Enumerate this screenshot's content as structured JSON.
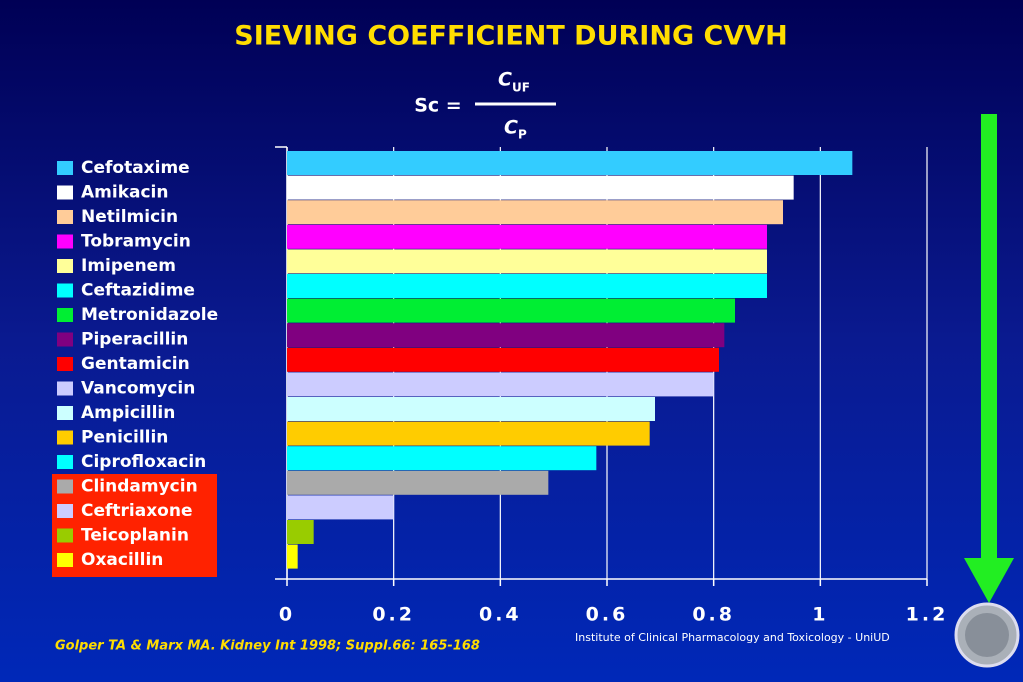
{
  "chart_data": {
    "type": "bar",
    "orientation": "horizontal",
    "title": "SIEVING COEFFICIENT DURING CVVH",
    "formula": {
      "left": "Sc =",
      "numerator": "C",
      "numerator_sub": "UF",
      "denominator": "C",
      "denominator_sub": "P"
    },
    "categories": [
      "Cefotaxime",
      "Amikacin",
      "Netilmicin",
      "Tobramycin",
      "Imipenem",
      "Ceftazidime",
      "Metronidazole",
      "Piperacillin",
      "Gentamicin",
      "Vancomycin",
      "Ampicillin",
      "Penicillin",
      "Ciprofloxacin",
      "Clindamycin",
      "Ceftriaxone",
      "Teicoplanin",
      "Oxacillin"
    ],
    "values": [
      1.06,
      0.95,
      0.93,
      0.9,
      0.9,
      0.9,
      0.84,
      0.82,
      0.81,
      0.8,
      0.69,
      0.68,
      0.58,
      0.49,
      0.2,
      0.05,
      0.02
    ],
    "colors": [
      "#33ccff",
      "#ffffff",
      "#ffcc99",
      "#ff00ff",
      "#ffff99",
      "#00ffff",
      "#00ee33",
      "#800080",
      "#ff0000",
      "#ccccff",
      "#ccffff",
      "#ffcc00",
      "#00ffff",
      "#aaaaaa",
      "#ccccff",
      "#99cc00",
      "#ffff00"
    ],
    "xlim": [
      0,
      1.2
    ],
    "xticks": [
      0,
      0.2,
      0.4,
      0.6,
      0.8,
      1,
      1.2
    ],
    "grid": true,
    "citation": "Golper TA & Marx MA. Kidney Int 1998; Suppl.66: 165-168",
    "institution": "Institute of Clinical Pharmacology and Toxicology - UniUD"
  }
}
